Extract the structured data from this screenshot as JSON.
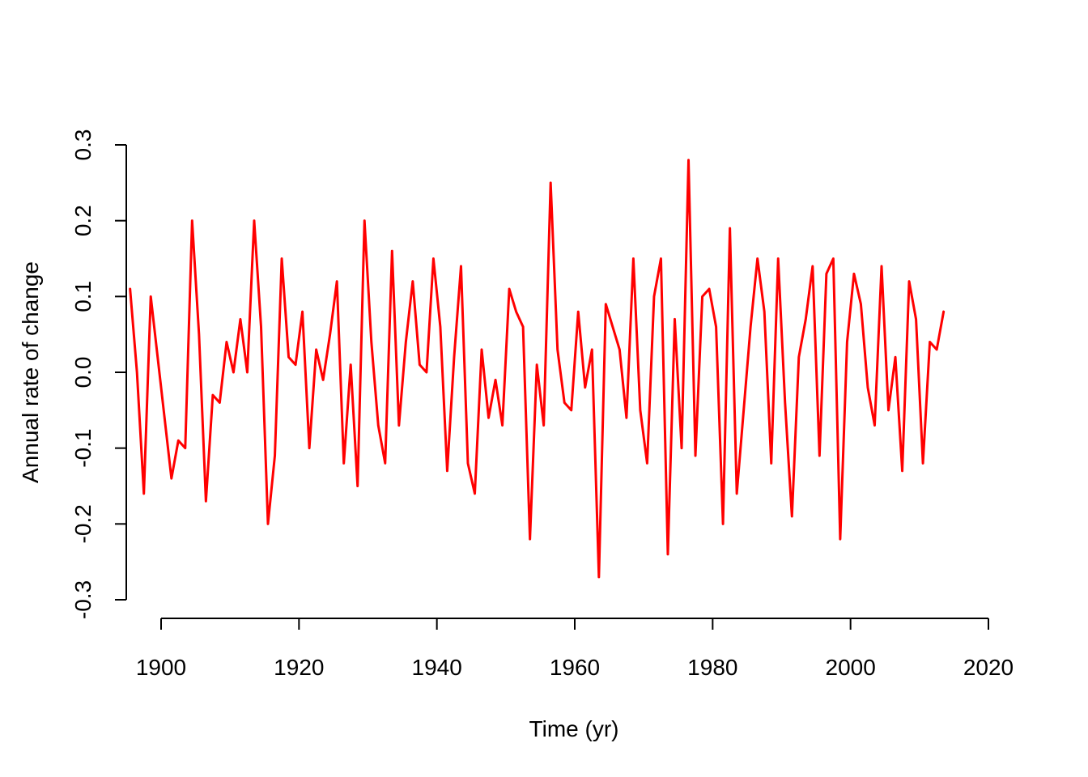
{
  "chart_data": {
    "type": "line",
    "title": "",
    "xlabel": "Time (yr)",
    "ylabel": "Annual rate of change",
    "xlim": [
      1895,
      2014
    ],
    "ylim": [
      -0.3,
      0.3
    ],
    "x_ticks": [
      1900,
      1920,
      1940,
      1960,
      1980,
      2000,
      2020
    ],
    "x_tick_labels": [
      "1900",
      "1920",
      "1940",
      "1960",
      "1980",
      "2000",
      "2020"
    ],
    "y_ticks": [
      -0.3,
      -0.2,
      -0.1,
      0.0,
      0.1,
      0.2,
      0.3
    ],
    "y_tick_labels": [
      "-0.3",
      "-0.2",
      "-0.1",
      "0.0",
      "0.1",
      "0.2",
      "0.3"
    ],
    "grid": false,
    "colors": {
      "series": "#ff0000",
      "axis": "#000000"
    },
    "series": [
      {
        "x_start": 1895.5,
        "x_step": 1,
        "values": [
          0.11,
          0.0,
          -0.16,
          0.1,
          0.02,
          -0.06,
          -0.14,
          -0.09,
          -0.1,
          0.2,
          0.05,
          -0.17,
          -0.03,
          -0.04,
          0.04,
          0.0,
          0.07,
          0.0,
          0.2,
          0.06,
          -0.2,
          -0.11,
          0.15,
          0.02,
          0.01,
          0.08,
          -0.1,
          0.03,
          -0.01,
          0.05,
          0.12,
          -0.12,
          0.01,
          -0.15,
          0.2,
          0.04,
          -0.07,
          -0.12,
          0.16,
          -0.07,
          0.04,
          0.12,
          0.01,
          0.0,
          0.15,
          0.06,
          -0.13,
          0.02,
          0.14,
          -0.12,
          -0.16,
          0.03,
          -0.06,
          -0.01,
          -0.07,
          0.11,
          0.08,
          0.06,
          -0.22,
          0.01,
          -0.07,
          0.25,
          0.03,
          -0.04,
          -0.05,
          0.08,
          -0.02,
          0.03,
          -0.27,
          0.09,
          0.06,
          0.03,
          -0.06,
          0.15,
          -0.05,
          -0.12,
          0.1,
          0.15,
          -0.24,
          0.07,
          -0.1,
          0.28,
          -0.11,
          0.1,
          0.11,
          0.06,
          -0.2,
          0.19,
          -0.16,
          -0.05,
          0.06,
          0.15,
          0.08,
          -0.12,
          0.15,
          -0.04,
          -0.19,
          0.02,
          0.07,
          0.14,
          -0.11,
          0.13,
          0.15,
          -0.22,
          0.04,
          0.13,
          0.09,
          -0.02,
          -0.07,
          0.14,
          -0.05,
          0.02,
          -0.13,
          0.12,
          0.07,
          -0.12,
          0.04,
          0.03,
          0.08
        ]
      }
    ]
  }
}
